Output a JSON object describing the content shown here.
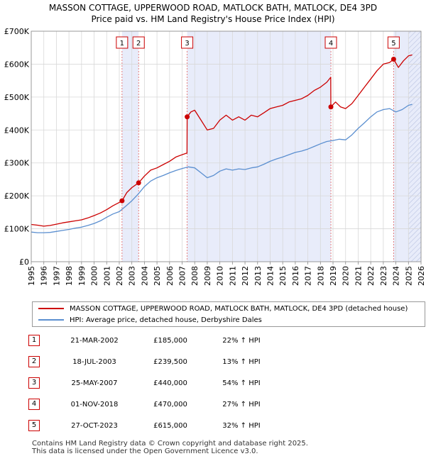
{
  "title_line1": "MASSON COTTAGE, UPPERWOOD ROAD, MATLOCK BATH, MATLOCK, DE4 3PD",
  "title_line2": "Price paid vs. HM Land Registry's House Price Index (HPI)",
  "chart_data": {
    "type": "line",
    "title": "MASSON COTTAGE, UPPERWOOD ROAD, MATLOCK BATH, MATLOCK, DE4 3PD",
    "subtitle": "Price paid vs. HM Land Registry's House Price Index (HPI)",
    "xlim": [
      1995,
      2026
    ],
    "ylim": [
      0,
      700000
    ],
    "x_ticks": [
      "1995",
      "1996",
      "1997",
      "1998",
      "1999",
      "2000",
      "2001",
      "2002",
      "2003",
      "2004",
      "2005",
      "2006",
      "2007",
      "2008",
      "2009",
      "2010",
      "2011",
      "2012",
      "2013",
      "2014",
      "2015",
      "2016",
      "2017",
      "2018",
      "2019",
      "2020",
      "2021",
      "2022",
      "2023",
      "2024",
      "2025",
      "2026"
    ],
    "y_ticks": [
      {
        "value": 0,
        "label": "£0"
      },
      {
        "value": 100000,
        "label": "£100K"
      },
      {
        "value": 200000,
        "label": "£200K"
      },
      {
        "value": 300000,
        "label": "£300K"
      },
      {
        "value": 400000,
        "label": "£400K"
      },
      {
        "value": 500000,
        "label": "£500K"
      },
      {
        "value": 600000,
        "label": "£600K"
      },
      {
        "value": 700000,
        "label": "£700K"
      }
    ],
    "grid": true,
    "shaded_regions": [
      {
        "from": 2002.22,
        "to": 2003.54,
        "color": "#e8ecfa"
      },
      {
        "from": 2007.4,
        "to": 2018.83,
        "color": "#e8ecfa"
      },
      {
        "from": 2023.82,
        "to": 2026,
        "color": "#e8ecfa"
      }
    ],
    "hatch_from": 2025.0,
    "series": [
      {
        "name": "MASSON COTTAGE, UPPERWOOD ROAD, MATLOCK BATH, MATLOCK, DE4 3PD (detached house)",
        "color": "#cc0000",
        "points": [
          [
            1995.0,
            113000
          ],
          [
            1995.5,
            111000
          ],
          [
            1996.0,
            108000
          ],
          [
            1996.5,
            110000
          ],
          [
            1997.0,
            114000
          ],
          [
            1997.5,
            118000
          ],
          [
            1998.0,
            121000
          ],
          [
            1998.5,
            124000
          ],
          [
            1999.0,
            127000
          ],
          [
            1999.5,
            133000
          ],
          [
            2000.0,
            140000
          ],
          [
            2000.5,
            148000
          ],
          [
            2001.0,
            158000
          ],
          [
            2001.5,
            170000
          ],
          [
            2002.0,
            180000
          ],
          [
            2002.22,
            185000
          ],
          [
            2002.6,
            210000
          ],
          [
            2003.0,
            225000
          ],
          [
            2003.54,
            239500
          ],
          [
            2004.0,
            260000
          ],
          [
            2004.5,
            278000
          ],
          [
            2005.0,
            285000
          ],
          [
            2005.5,
            295000
          ],
          [
            2006.0,
            305000
          ],
          [
            2006.5,
            318000
          ],
          [
            2007.0,
            325000
          ],
          [
            2007.39,
            330000
          ],
          [
            2007.4,
            440000
          ],
          [
            2007.7,
            455000
          ],
          [
            2008.0,
            460000
          ],
          [
            2008.5,
            430000
          ],
          [
            2009.0,
            400000
          ],
          [
            2009.5,
            405000
          ],
          [
            2010.0,
            430000
          ],
          [
            2010.5,
            445000
          ],
          [
            2011.0,
            430000
          ],
          [
            2011.5,
            440000
          ],
          [
            2012.0,
            430000
          ],
          [
            2012.5,
            445000
          ],
          [
            2013.0,
            440000
          ],
          [
            2013.5,
            452000
          ],
          [
            2014.0,
            465000
          ],
          [
            2014.5,
            470000
          ],
          [
            2015.0,
            475000
          ],
          [
            2015.5,
            485000
          ],
          [
            2016.0,
            490000
          ],
          [
            2016.5,
            495000
          ],
          [
            2017.0,
            505000
          ],
          [
            2017.5,
            520000
          ],
          [
            2018.0,
            530000
          ],
          [
            2018.5,
            545000
          ],
          [
            2018.82,
            560000
          ],
          [
            2018.83,
            470000
          ],
          [
            2019.2,
            485000
          ],
          [
            2019.6,
            470000
          ],
          [
            2020.0,
            465000
          ],
          [
            2020.5,
            480000
          ],
          [
            2021.0,
            505000
          ],
          [
            2021.5,
            530000
          ],
          [
            2022.0,
            555000
          ],
          [
            2022.5,
            580000
          ],
          [
            2023.0,
            600000
          ],
          [
            2023.5,
            605000
          ],
          [
            2023.82,
            615000
          ],
          [
            2024.2,
            590000
          ],
          [
            2024.6,
            610000
          ],
          [
            2025.0,
            625000
          ],
          [
            2025.3,
            628000
          ]
        ]
      },
      {
        "name": "HPI: Average price, detached house, Derbyshire Dales",
        "color": "#5b8fd0",
        "points": [
          [
            1995.0,
            90000
          ],
          [
            1995.5,
            88000
          ],
          [
            1996.0,
            88000
          ],
          [
            1996.5,
            89000
          ],
          [
            1997.0,
            92000
          ],
          [
            1997.5,
            95000
          ],
          [
            1998.0,
            98000
          ],
          [
            1998.5,
            102000
          ],
          [
            1999.0,
            105000
          ],
          [
            1999.5,
            110000
          ],
          [
            2000.0,
            116000
          ],
          [
            2000.5,
            124000
          ],
          [
            2001.0,
            135000
          ],
          [
            2001.5,
            145000
          ],
          [
            2002.0,
            152000
          ],
          [
            2002.5,
            168000
          ],
          [
            2003.0,
            185000
          ],
          [
            2003.5,
            205000
          ],
          [
            2004.0,
            228000
          ],
          [
            2004.5,
            245000
          ],
          [
            2005.0,
            255000
          ],
          [
            2005.5,
            262000
          ],
          [
            2006.0,
            270000
          ],
          [
            2006.5,
            277000
          ],
          [
            2007.0,
            283000
          ],
          [
            2007.5,
            288000
          ],
          [
            2008.0,
            285000
          ],
          [
            2008.5,
            270000
          ],
          [
            2009.0,
            255000
          ],
          [
            2009.5,
            262000
          ],
          [
            2010.0,
            275000
          ],
          [
            2010.5,
            282000
          ],
          [
            2011.0,
            278000
          ],
          [
            2011.5,
            282000
          ],
          [
            2012.0,
            280000
          ],
          [
            2012.5,
            285000
          ],
          [
            2013.0,
            288000
          ],
          [
            2013.5,
            296000
          ],
          [
            2014.0,
            305000
          ],
          [
            2014.5,
            312000
          ],
          [
            2015.0,
            318000
          ],
          [
            2015.5,
            325000
          ],
          [
            2016.0,
            332000
          ],
          [
            2016.5,
            336000
          ],
          [
            2017.0,
            342000
          ],
          [
            2017.5,
            350000
          ],
          [
            2018.0,
            358000
          ],
          [
            2018.5,
            365000
          ],
          [
            2019.0,
            368000
          ],
          [
            2019.5,
            372000
          ],
          [
            2020.0,
            370000
          ],
          [
            2020.5,
            385000
          ],
          [
            2021.0,
            405000
          ],
          [
            2021.5,
            422000
          ],
          [
            2022.0,
            440000
          ],
          [
            2022.5,
            455000
          ],
          [
            2023.0,
            462000
          ],
          [
            2023.5,
            465000
          ],
          [
            2024.0,
            455000
          ],
          [
            2024.5,
            462000
          ],
          [
            2025.0,
            475000
          ],
          [
            2025.3,
            478000
          ]
        ]
      }
    ],
    "annotations": [
      {
        "id": "1",
        "x": 2002.22,
        "y": 185000
      },
      {
        "id": "2",
        "x": 2003.54,
        "y": 239500
      },
      {
        "id": "3",
        "x": 2007.4,
        "y": 440000
      },
      {
        "id": "4",
        "x": 2018.83,
        "y": 470000
      },
      {
        "id": "5",
        "x": 2023.82,
        "y": 615000
      }
    ]
  },
  "legend": {
    "property_label": "MASSON COTTAGE, UPPERWOOD ROAD, MATLOCK BATH, MATLOCK, DE4 3PD (detached house)",
    "hpi_label": "HPI: Average price, detached house, Derbyshire Dales",
    "property_color": "#cc0000",
    "hpi_color": "#5b8fd0"
  },
  "sales": [
    {
      "num": "1",
      "date": "21-MAR-2002",
      "price": "£185,000",
      "hpi": "22% ↑ HPI"
    },
    {
      "num": "2",
      "date": "18-JUL-2003",
      "price": "£239,500",
      "hpi": "13% ↑ HPI"
    },
    {
      "num": "3",
      "date": "25-MAY-2007",
      "price": "£440,000",
      "hpi": "54% ↑ HPI"
    },
    {
      "num": "4",
      "date": "01-NOV-2018",
      "price": "£470,000",
      "hpi": "27% ↑ HPI"
    },
    {
      "num": "5",
      "date": "27-OCT-2023",
      "price": "£615,000",
      "hpi": "32% ↑ HPI"
    }
  ],
  "footer": {
    "line1": "Contains HM Land Registry data © Crown copyright and database right 2025.",
    "line2": "This data is licensed under the Open Government Licence v3.0."
  }
}
